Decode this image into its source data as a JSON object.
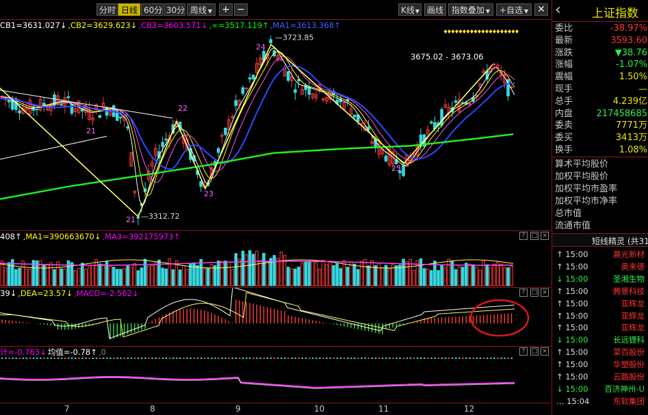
{
  "toolbar": {
    "periods": [
      "分时",
      "日线",
      "60分",
      "30分",
      "周线"
    ],
    "active_period": "日线",
    "zoom_in": "+",
    "zoom_out": "−",
    "kline_type": "K线",
    "drawing": "画线",
    "index_overlay": "指数叠加",
    "add_watch": "+自选"
  },
  "main_panel": {
    "indicators": [
      {
        "text": "CB1=3631.027",
        "arrow": "↓",
        "color": "#ffffff"
      },
      {
        "text": ",CB2=3629.623",
        "arrow": "↓",
        "color": "#ffff00"
      },
      {
        "text": ",CB3=3603.571",
        "arrow": "↓",
        "color": "#ff00ff"
      },
      {
        "text": ",∞=3517.119",
        "arrow": "↑",
        "color": "#00ff00"
      },
      {
        "text": ",MA1=3613.368",
        "arrow": "↑",
        "color": "#4060ff"
      }
    ],
    "high_label": "3723.85",
    "low_label": "3312.72",
    "range_label": "3675.02 - 3673.06",
    "wave_labels": [
      "21",
      "22",
      "23",
      "24",
      "25"
    ]
  },
  "volume_panel": {
    "indicators": [
      {
        "text": "408",
        "arrow": "↑",
        "color": "#ffffff"
      },
      {
        "text": ",MA1=390663670",
        "arrow": "↓",
        "color": "#ffff00"
      },
      {
        "text": ",MA3=392175973",
        "arrow": "↑",
        "color": "#ff00ff"
      }
    ]
  },
  "macd_panel": {
    "indicators": [
      {
        "text": "39",
        "arrow": "↓",
        "color": "#ffffff"
      },
      {
        "text": ",DEA=23.57",
        "arrow": "↓",
        "color": "#ffff00"
      },
      {
        "text": ",MACD=-2.562",
        "arrow": "↓",
        "color": "#ff00ff"
      }
    ]
  },
  "fourth_panel": {
    "indicators": [
      {
        "text": "计=-0.763",
        "arrow": "↓",
        "color": "#ff00ff"
      },
      {
        "text": "均值=-0.78",
        "arrow": "↑",
        "color": "#ffffff"
      },
      {
        "text": ",0",
        "arrow": "",
        "color": "#888888"
      }
    ]
  },
  "x_axis_months": [
    "7",
    "8",
    "9",
    "10",
    "11",
    "12"
  ],
  "quote": {
    "title": "上证指数",
    "back_arrow": "‹",
    "rows": [
      {
        "label": "委比",
        "value": "-38.97%",
        "color": "red"
      },
      {
        "label": "最新",
        "value": "3593.60",
        "color": "red"
      },
      {
        "label": "涨跌",
        "value": "▼38.76",
        "color": "green"
      },
      {
        "label": "涨幅",
        "value": "-1.07%",
        "color": "green"
      },
      {
        "label": "震幅",
        "value": "1.50%",
        "color": "yellow"
      },
      {
        "label": "现手",
        "value": "—",
        "color": "yellow"
      },
      {
        "label": "总手",
        "value": "4.239亿",
        "color": "yellow"
      },
      {
        "label": "内盘",
        "value": "217458685",
        "color": "green"
      },
      {
        "label": "委卖",
        "value": "7771万",
        "color": "yellow"
      },
      {
        "label": "委买",
        "value": "3413万",
        "color": "yellow"
      },
      {
        "label": "换手",
        "value": "1.08%",
        "color": "yellow"
      }
    ],
    "info_items": [
      "算术平均股价",
      "加权平均股价",
      "加权平均市盈率",
      "加权平均市净率",
      "总市值",
      "流通市值"
    ]
  },
  "sprite": {
    "title": "短线精灵 (共31",
    "items": [
      {
        "arrow": "↑",
        "time": "15:00",
        "name": "晨光新材",
        "dir": "up"
      },
      {
        "arrow": "↑",
        "time": "15:00",
        "name": "奥来德",
        "dir": "up"
      },
      {
        "arrow": "↓",
        "time": "15:00",
        "name": "圣湘生物",
        "dir": "down"
      },
      {
        "arrow": "↑",
        "time": "15:00",
        "name": "腾景科技",
        "dir": "up"
      },
      {
        "arrow": "↑",
        "time": "15:00",
        "name": "亚辉龙",
        "dir": "up"
      },
      {
        "arrow": "↑",
        "time": "15:00",
        "name": "亚辉龙",
        "dir": "up"
      },
      {
        "arrow": "↑",
        "time": "15:00",
        "name": "亚辉龙",
        "dir": "up"
      },
      {
        "arrow": "↓",
        "time": "15:00",
        "name": "长远锂科",
        "dir": "down"
      },
      {
        "arrow": "↑",
        "time": "15:00",
        "name": "菜百股份",
        "dir": "up"
      },
      {
        "arrow": "↑",
        "time": "15:00",
        "name": "华塑股份",
        "dir": "up"
      },
      {
        "arrow": "↑",
        "time": "15:00",
        "name": "云路股份",
        "dir": "up"
      },
      {
        "arrow": "↓",
        "time": "15:00",
        "name": "百济神州-U",
        "dir": "down"
      },
      {
        "arrow": "…",
        "time": "15:04",
        "name": "东软集团",
        "dir": "up"
      }
    ]
  },
  "colors": {
    "up": "#ff3232",
    "down": "#2ef04a",
    "candle_up": "#ff3a3a",
    "candle_down": "#36d8e0",
    "wave": "#ffff66",
    "ma_green": "#22ee22",
    "ma_blue": "#2a4cff"
  }
}
